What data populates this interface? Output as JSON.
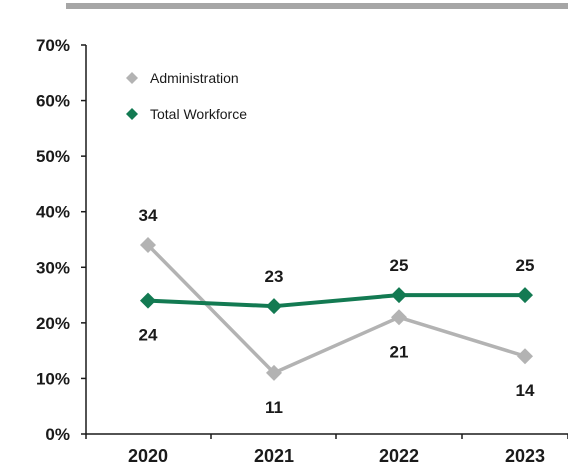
{
  "chart_data": {
    "type": "line",
    "categories": [
      "2020",
      "2021",
      "2022",
      "2023"
    ],
    "y_ticks": [
      "0%",
      "10%",
      "20%",
      "30%",
      "40%",
      "50%",
      "60%",
      "70%"
    ],
    "ylim": [
      0,
      70
    ],
    "grid": false,
    "legend_position": "top-left",
    "series": [
      {
        "name": "Administration",
        "values": [
          34,
          11,
          21,
          14
        ],
        "labels": [
          "34",
          "11",
          "21",
          "14"
        ],
        "label_side": [
          "above",
          "below",
          "below",
          "below"
        ],
        "color": "#b3b3b3",
        "marker": "diamond"
      },
      {
        "name": "Total Workforce",
        "values": [
          24,
          23,
          25,
          25
        ],
        "labels": [
          "24",
          "23",
          "25",
          "25"
        ],
        "label_side": [
          "below",
          "above",
          "above",
          "above"
        ],
        "color": "#137a52",
        "marker": "diamond"
      }
    ]
  },
  "colors": {
    "top_rule": "#a6a6a6",
    "axis": "#1a1a1a"
  }
}
